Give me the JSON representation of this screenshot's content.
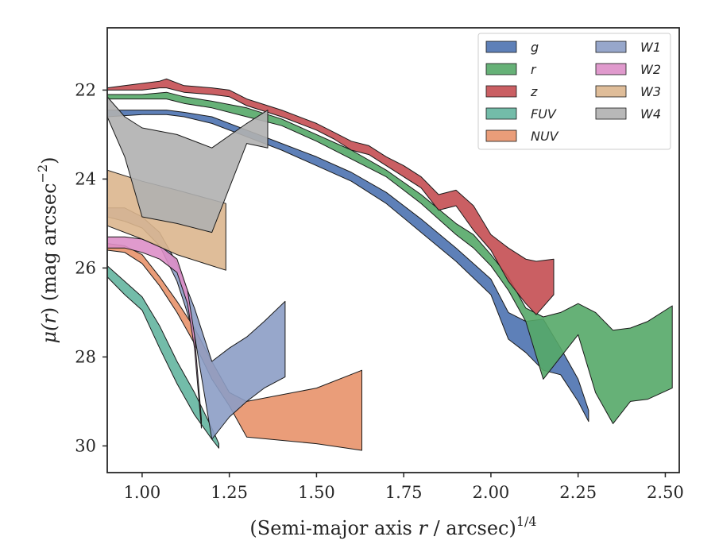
{
  "chart_data": {
    "type": "area",
    "title": "",
    "xlabel": "(Semi-major axis r / arcsec)",
    "xlabel_parts": {
      "pre": "(Semi-major axis ",
      "var": "r",
      "post": " / arcsec)",
      "exp": "1/4"
    },
    "ylabel": "μ(r) (mag arcsec⁻²)",
    "ylabel_parts": {
      "mu": "μ(",
      "var": "r",
      "mid": ") (mag arcsec",
      "exp": "−2",
      "end": ")"
    },
    "xlim": [
      0.9,
      2.54
    ],
    "ylim": [
      30.6,
      20.6
    ],
    "y_inverted": true,
    "xticks": [
      1.0,
      1.25,
      1.5,
      1.75,
      2.0,
      2.25,
      2.5
    ],
    "xtick_labels": [
      "1.00",
      "1.25",
      "1.50",
      "1.75",
      "2.00",
      "2.25",
      "2.50"
    ],
    "yticks": [
      22,
      24,
      26,
      28,
      30
    ],
    "ytick_labels": [
      "22",
      "24",
      "26",
      "28",
      "30"
    ],
    "grid": false,
    "legend_position": "top-right",
    "legend_columns": 2,
    "series": [
      {
        "name": "g",
        "color": "#4c72b0",
        "x": [
          0.9,
          1.0,
          1.07,
          1.12,
          1.2,
          1.3,
          1.4,
          1.5,
          1.6,
          1.7,
          1.8,
          1.9,
          2.0,
          2.05,
          2.1,
          2.15,
          2.2,
          2.25,
          2.28
        ],
        "y_bright": [
          22.45,
          22.45,
          22.45,
          22.5,
          22.6,
          22.9,
          23.2,
          23.5,
          23.85,
          24.3,
          24.9,
          25.55,
          26.25,
          27.0,
          27.2,
          27.15,
          27.8,
          28.5,
          29.2
        ],
        "y_faint": [
          22.6,
          22.55,
          22.55,
          22.6,
          22.75,
          23.05,
          23.35,
          23.7,
          24.05,
          24.55,
          25.2,
          25.85,
          26.6,
          27.6,
          27.9,
          28.3,
          28.4,
          29.0,
          29.45
        ]
      },
      {
        "name": "r",
        "color": "#55a868",
        "x": [
          0.9,
          1.0,
          1.07,
          1.12,
          1.2,
          1.3,
          1.4,
          1.5,
          1.6,
          1.7,
          1.8,
          1.9,
          1.95,
          2.0,
          2.05,
          2.1,
          2.15,
          2.2,
          2.25,
          2.3,
          2.35,
          2.4,
          2.45,
          2.52
        ],
        "y_bright": [
          22.1,
          22.1,
          22.05,
          22.15,
          22.25,
          22.4,
          22.65,
          23.0,
          23.35,
          23.8,
          24.35,
          25.0,
          25.25,
          25.7,
          26.2,
          26.9,
          27.1,
          27.0,
          26.8,
          27.0,
          27.4,
          27.35,
          27.2,
          26.85
        ],
        "y_faint": [
          22.2,
          22.2,
          22.2,
          22.3,
          22.4,
          22.6,
          22.8,
          23.15,
          23.55,
          23.95,
          24.55,
          25.25,
          25.55,
          25.95,
          26.5,
          27.2,
          28.5,
          28.0,
          27.5,
          28.8,
          29.5,
          29.0,
          28.95,
          28.7
        ]
      },
      {
        "name": "z",
        "color": "#c44e52",
        "x": [
          0.9,
          0.95,
          1.0,
          1.05,
          1.07,
          1.12,
          1.2,
          1.25,
          1.3,
          1.4,
          1.5,
          1.55,
          1.6,
          1.65,
          1.7,
          1.75,
          1.8,
          1.85,
          1.9,
          1.95,
          2.0,
          2.05,
          2.1,
          2.13,
          2.18
        ],
        "y_bright": [
          21.95,
          21.9,
          21.85,
          21.8,
          21.75,
          21.9,
          21.95,
          22.0,
          22.2,
          22.45,
          22.75,
          22.95,
          23.15,
          23.25,
          23.5,
          23.7,
          23.95,
          24.35,
          24.25,
          24.6,
          25.25,
          25.55,
          25.8,
          25.85,
          25.8
        ],
        "y_faint": [
          22.0,
          22.0,
          22.0,
          21.95,
          21.95,
          22.05,
          22.1,
          22.15,
          22.35,
          22.6,
          22.9,
          23.1,
          23.35,
          23.45,
          23.7,
          23.95,
          24.2,
          24.7,
          24.6,
          25.15,
          25.6,
          26.3,
          26.8,
          27.05,
          26.6
        ]
      },
      {
        "name": "FUV",
        "color": "#64b5a0",
        "x": [
          0.9,
          0.95,
          1.0,
          1.05,
          1.1,
          1.15,
          1.2,
          1.22
        ],
        "y_bright": [
          25.95,
          26.3,
          26.65,
          27.3,
          28.1,
          28.8,
          29.6,
          29.95
        ],
        "y_faint": [
          26.2,
          26.6,
          26.95,
          27.8,
          28.6,
          29.3,
          29.85,
          30.05
        ]
      },
      {
        "name": "NUV",
        "color": "#e8926a",
        "x_bright": [
          0.9,
          0.95,
          1.0,
          1.05,
          1.1,
          1.15,
          1.2,
          1.25,
          1.3,
          1.5,
          1.63
        ],
        "y_bright": [
          25.45,
          25.5,
          25.7,
          26.2,
          26.75,
          27.35,
          28.1,
          28.8,
          29.0,
          28.7,
          28.3
        ],
        "x_faint": [
          0.9,
          0.95,
          1.0,
          1.05,
          1.1,
          1.15,
          1.2,
          1.25,
          1.3,
          1.5,
          1.63
        ],
        "y_faint": [
          25.6,
          25.65,
          25.9,
          26.4,
          27.0,
          27.7,
          28.5,
          29.1,
          29.8,
          29.95,
          30.1
        ]
      },
      {
        "name": "W1",
        "color": "#8c9dc5",
        "x": [
          0.9,
          0.95,
          1.0,
          1.05,
          1.1,
          1.15,
          1.2,
          1.25,
          1.3,
          1.35,
          1.41
        ],
        "y_bright": [
          24.65,
          24.65,
          24.85,
          25.2,
          25.9,
          26.9,
          28.1,
          27.8,
          27.55,
          27.2,
          26.75
        ],
        "y_faint": [
          24.85,
          24.95,
          25.1,
          25.5,
          26.3,
          27.5,
          29.85,
          29.35,
          29.0,
          28.7,
          28.45
        ]
      },
      {
        "name": "W2",
        "color": "#dd8fc8",
        "x": [
          0.9,
          0.95,
          1.0,
          1.05,
          1.1,
          1.13,
          1.15,
          1.17
        ],
        "y_bright": [
          25.3,
          25.3,
          25.35,
          25.5,
          25.8,
          26.5,
          27.5,
          29.4
        ],
        "y_faint": [
          25.55,
          25.55,
          25.65,
          25.8,
          26.1,
          26.8,
          27.8,
          29.6
        ]
      },
      {
        "name": "W3",
        "color": "#dbb68e",
        "x": [
          0.9,
          1.0,
          1.1,
          1.24
        ],
        "y_bright": [
          23.8,
          24.05,
          24.25,
          24.55
        ],
        "y_faint": [
          25.05,
          25.35,
          25.7,
          26.05
        ]
      },
      {
        "name": "W4",
        "color": "#b0b0b0",
        "x": [
          0.9,
          0.95,
          1.0,
          1.1,
          1.2,
          1.3,
          1.36
        ],
        "y_bright": [
          22.15,
          22.6,
          22.85,
          23.0,
          23.3,
          22.75,
          22.45
        ],
        "y_faint": [
          22.6,
          23.5,
          24.85,
          25.0,
          25.2,
          23.2,
          23.3
        ]
      }
    ]
  }
}
